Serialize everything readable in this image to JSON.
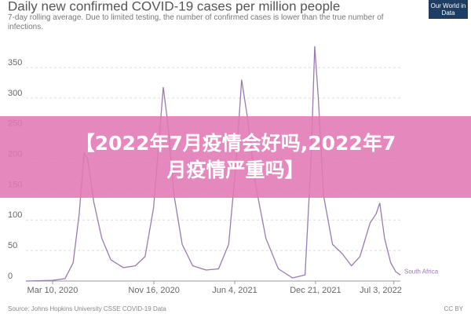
{
  "chart_data": {
    "type": "line",
    "title": "Daily new confirmed COVID-19 cases per million people",
    "subtitle": "7-day rolling average. Due to limited testing, the number of confirmed cases is lower than the true number of infections.",
    "logo": "Our World in Data",
    "source": "Source: Johns Hopkins University CSSE COVID-19 Data",
    "license": "CC BY",
    "banner": "【2022年7月疫情会好吗,2022年7月疫情严重吗】",
    "x": [
      "2020-01-04",
      "2020-03-10",
      "2020-04-10",
      "2020-04-30",
      "2020-05-15",
      "2020-05-27",
      "2020-06-05",
      "2020-06-20",
      "2020-07-10",
      "2020-08-01",
      "2020-09-01",
      "2020-10-01",
      "2020-10-25",
      "2020-11-15",
      "2020-12-01",
      "2020-12-09",
      "2020-12-20",
      "2021-01-05",
      "2021-01-25",
      "2021-02-20",
      "2021-03-25",
      "2021-04-25",
      "2021-05-20",
      "2021-06-08",
      "2021-06-21",
      "2021-07-05",
      "2021-07-25",
      "2021-08-20",
      "2021-09-20",
      "2021-10-25",
      "2021-11-25",
      "2021-12-10",
      "2021-12-19",
      "2021-12-28",
      "2022-01-10",
      "2022-02-01",
      "2022-02-25",
      "2022-03-20",
      "2022-04-10",
      "2022-05-05",
      "2022-05-20",
      "2022-05-29",
      "2022-06-10",
      "2022-06-25",
      "2022-07-08",
      "2022-07-19"
    ],
    "series": [
      {
        "name": "South Africa",
        "color": "#9a7ab0",
        "values": [
          0,
          1,
          4,
          30,
          110,
          210,
          200,
          130,
          70,
          35,
          22,
          25,
          40,
          120,
          250,
          318,
          260,
          140,
          60,
          25,
          18,
          20,
          60,
          200,
          330,
          270,
          160,
          70,
          20,
          5,
          10,
          200,
          385,
          300,
          140,
          60,
          45,
          25,
          40,
          95,
          110,
          128,
          70,
          30,
          15,
          10
        ]
      }
    ],
    "xlim": [
      "2020-01-04",
      "2022-07-19"
    ],
    "xticks": [
      {
        "value": "2020-03-10",
        "label": "Mar 10, 2020"
      },
      {
        "value": "2020-11-16",
        "label": "Nov 16, 2020"
      },
      {
        "value": "2021-06-04",
        "label": "Jun 4, 2021"
      },
      {
        "value": "2021-12-21",
        "label": "Dec 21, 2021"
      },
      {
        "value": "2022-07-03",
        "label": "Jul 3, 2022"
      }
    ],
    "ylim": [
      0,
      390
    ],
    "yticks": [
      0,
      50,
      100,
      150,
      200,
      250,
      300,
      350
    ],
    "grid": true
  }
}
